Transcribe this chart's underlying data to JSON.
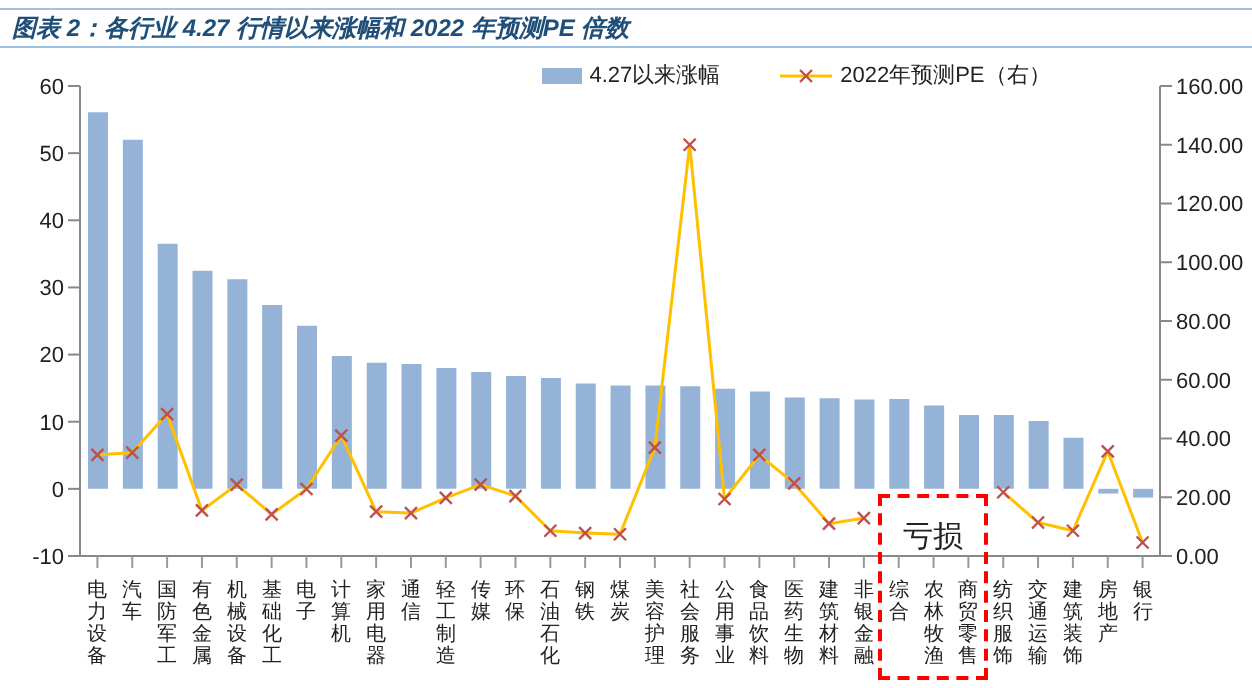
{
  "chart_data": {
    "type": "bar",
    "title": "图表 2：各行业 4.27 行情以来涨幅和 2022 年预测PE 倍数",
    "categories": [
      "电力设备",
      "汽车",
      "国防军工",
      "有色金属",
      "机械设备",
      "基础化工",
      "电子",
      "计算机",
      "家用电器",
      "通信",
      "轻工制造",
      "传媒",
      "环保",
      "石油石化",
      "钢铁",
      "煤炭",
      "美容护理",
      "社会服务",
      "公用事业",
      "食品饮料",
      "医药生物",
      "建筑材料",
      "非银金融",
      "综合",
      "农林牧渔",
      "商贸零售",
      "纺织服饰",
      "交通运输",
      "建筑装饰",
      "房地产",
      "银行"
    ],
    "series": [
      {
        "name": "4.27以来涨幅",
        "color": "#95b3d7",
        "values": [
          56.1,
          52,
          36.5,
          32.5,
          31.2,
          27.4,
          24.3,
          19.8,
          18.8,
          18.6,
          18,
          17.4,
          16.8,
          16.5,
          15.7,
          15.4,
          15.4,
          15.3,
          14.9,
          14.5,
          13.6,
          13.5,
          13.3,
          13.4,
          12.4,
          11,
          11,
          10.1,
          7.6,
          -0.7,
          -1.3
        ]
      },
      {
        "name": "2022年预测PE（右）",
        "type": "line",
        "axis": "y2",
        "color": "#ffc000",
        "marker": "cross",
        "values": [
          34.4,
          35.2,
          48.3,
          15.5,
          24.3,
          14.2,
          22.8,
          41,
          15.1,
          14.6,
          19.8,
          24.3,
          20.4,
          8.6,
          7.8,
          7.4,
          36.9,
          140,
          19.4,
          34.4,
          24.7,
          11,
          12.9,
          null,
          null,
          null,
          21.7,
          11.4,
          8.6,
          35.6,
          4.6
        ]
      }
    ],
    "ylim": [
      -10,
      60
    ],
    "yticks": [
      -10,
      0,
      10,
      20,
      30,
      40,
      50,
      60
    ],
    "y2lim": [
      0,
      160
    ],
    "y2ticks": [
      {
        "value": 0,
        "label": "0.00"
      },
      {
        "value": 20,
        "label": "20.00"
      },
      {
        "value": 40,
        "label": "40.00"
      },
      {
        "value": 60,
        "label": "60.00"
      },
      {
        "value": 80,
        "label": "80.00"
      },
      {
        "value": 100,
        "label": "100.00"
      },
      {
        "value": 120,
        "label": "120.00"
      },
      {
        "value": 140,
        "label": "140.00"
      },
      {
        "value": 160,
        "label": "160.00"
      }
    ],
    "legend": "top",
    "annotations": [
      "亏损"
    ]
  }
}
